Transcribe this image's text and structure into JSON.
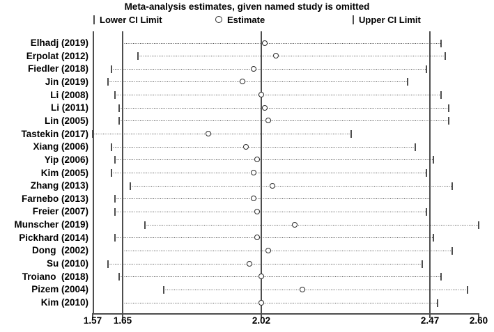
{
  "title": "Meta-analysis estimates, given named study is omitted",
  "legend": {
    "lower_label": "Lower CI Limit",
    "estimate_label": "Estimate",
    "upper_label": "Upper CI Limit"
  },
  "colors": {
    "line": "#4d4d4d",
    "marker_stroke": "#2b2b2b",
    "text": "#000000",
    "background": "#ffffff"
  },
  "chart_data": {
    "type": "scatter",
    "variant": "forest-plot-leave-one-out",
    "title": "Meta-analysis estimates, given named study is omitted",
    "xlabel": "",
    "ylabel": "",
    "xlim": [
      1.57,
      2.6
    ],
    "x_ticks": [
      1.57,
      1.65,
      2.02,
      2.47,
      2.6
    ],
    "x_tick_labels": [
      "1.57",
      "1.65",
      "2.02",
      "2.47",
      "2.60"
    ],
    "grid": false,
    "legend_position": "top",
    "legend": [
      "Lower CI Limit",
      "Estimate",
      "Upper CI Limit"
    ],
    "overall": {
      "lower_ci": 1.65,
      "estimate": 2.02,
      "upper_ci": 2.47
    },
    "studies": [
      {
        "label": "Elhadj (2019)",
        "lower": 1.65,
        "estimate": 2.03,
        "upper": 2.5
      },
      {
        "label": "Erpolat (2012)",
        "lower": 1.69,
        "estimate": 2.06,
        "upper": 2.51
      },
      {
        "label": "Fiedler (2018)",
        "lower": 1.62,
        "estimate": 2.0,
        "upper": 2.46
      },
      {
        "label": "Jin (2019)",
        "lower": 1.61,
        "estimate": 1.97,
        "upper": 2.41
      },
      {
        "label": "Li (2008)",
        "lower": 1.63,
        "estimate": 2.02,
        "upper": 2.5
      },
      {
        "label": "Li (2011)",
        "lower": 1.64,
        "estimate": 2.03,
        "upper": 2.52
      },
      {
        "label": "Lin (2005)",
        "lower": 1.64,
        "estimate": 2.04,
        "upper": 2.52
      },
      {
        "label": "Tastekin (2017)",
        "lower": 1.57,
        "estimate": 1.88,
        "upper": 2.26
      },
      {
        "label": "Xiang (2006)",
        "lower": 1.62,
        "estimate": 1.98,
        "upper": 2.43
      },
      {
        "label": "Yip (2006)",
        "lower": 1.63,
        "estimate": 2.01,
        "upper": 2.48
      },
      {
        "label": "Kim (2005)",
        "lower": 1.62,
        "estimate": 2.0,
        "upper": 2.46
      },
      {
        "label": "Zhang (2013)",
        "lower": 1.67,
        "estimate": 2.05,
        "upper": 2.53
      },
      {
        "label": "Farnebo (2013)",
        "lower": 1.63,
        "estimate": 2.0,
        "upper": 2.47
      },
      {
        "label": "Freier (2007)",
        "lower": 1.63,
        "estimate": 2.01,
        "upper": 2.46
      },
      {
        "label": "Munscher (2019)",
        "lower": 1.71,
        "estimate": 2.11,
        "upper": 2.6
      },
      {
        "label": "Pickhard (2014)",
        "lower": 1.63,
        "estimate": 2.01,
        "upper": 2.48
      },
      {
        "label": "Dong  (2002)",
        "lower": 1.65,
        "estimate": 2.04,
        "upper": 2.53
      },
      {
        "label": "Su (2010)",
        "lower": 1.61,
        "estimate": 1.99,
        "upper": 2.45
      },
      {
        "label": "Troiano  (2018)",
        "lower": 1.64,
        "estimate": 2.02,
        "upper": 2.5
      },
      {
        "label": "Pizem (2004)",
        "lower": 1.76,
        "estimate": 2.13,
        "upper": 2.57
      },
      {
        "label": "Kim (2010)",
        "lower": 1.65,
        "estimate": 2.02,
        "upper": 2.49
      }
    ]
  }
}
